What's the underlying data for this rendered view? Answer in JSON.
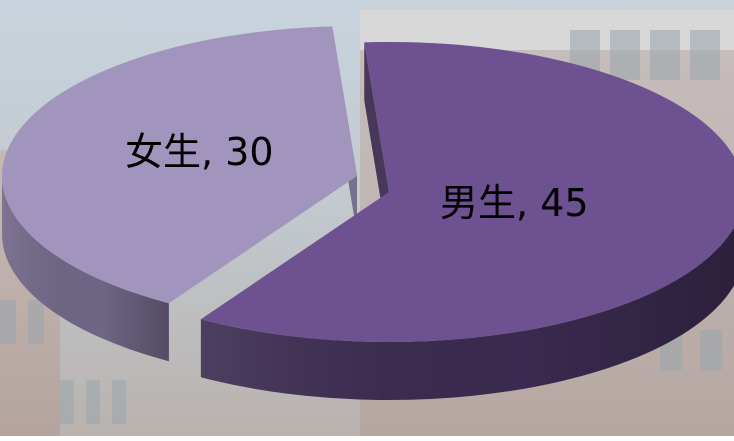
{
  "chart_data": {
    "type": "pie",
    "slices": [
      {
        "name": "男生",
        "value": 45,
        "label": "男生, 45",
        "color": "#6e5190",
        "side_color": "#3a2a4f"
      },
      {
        "name": "女生",
        "value": 30,
        "label": "女生, 30",
        "color": "#a295bd",
        "side_color": "#6f6585"
      }
    ],
    "legend": "none",
    "style": "3d-exploded"
  }
}
